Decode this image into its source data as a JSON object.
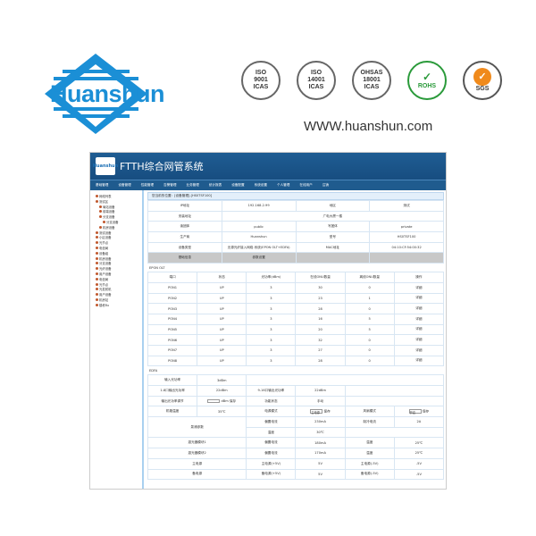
{
  "brand": {
    "name": "Huanshun",
    "url": "WWW.huanshun.com"
  },
  "certs": [
    {
      "line1": "ISO",
      "line2": "9001",
      "line3": "ICAS"
    },
    {
      "line1": "ISO",
      "line2": "14001",
      "line3": "ICAS"
    },
    {
      "line1": "OHSAS",
      "line2": "18001",
      "line3": "ICAS"
    },
    {
      "line1": "",
      "line2": "ROHS",
      "line3": ""
    },
    {
      "line1": "",
      "line2": "",
      "line3": "SGS"
    }
  ],
  "app": {
    "logo": "Huanshun",
    "title": "FTTH综合网管系统",
    "nav": [
      "基础管理",
      "设备管理",
      "性能管理",
      "告警管理",
      "业务管理",
      "统计报表",
      "设备配置",
      "系统设置",
      "个人管理",
      "在线用户",
      "注销"
    ],
    "sidebar": [
      "网络列表",
      "测试区",
      "局站设备",
      "前端设备",
      "分支设备",
      "分支设备",
      "机房设备",
      "测试设备",
      "小区设备",
      "光节点",
      "电信局",
      "设备组",
      "机房设备",
      "分支设备",
      "光纤设备",
      "用户设备",
      "电信局",
      "光节点",
      "光发射机",
      "用户设备",
      "机房站",
      "楼栋Rx"
    ],
    "breadcrumb": "您当前的位置：[设备管理]-[HS0TSF100]",
    "info": {
      "rows": [
        [
          "IP地址",
          "192.168.2.99",
          "地区",
          "测试"
        ],
        [
          "安装地址",
          "广电大厦一楼"
        ],
        [
          "读团体",
          "public",
          "写团体",
          "private"
        ],
        [
          "生产商",
          "Huanshun",
          "型号",
          "HS0TSF100"
        ],
        [
          "设备类型",
          "无源光纤接入网络-系统(EPON OLT+EDFA)",
          "MAC地址",
          "04:10:CF:54:00:32"
        ]
      ],
      "tabs": [
        "基础信息",
        "参数设置"
      ]
    },
    "epon": {
      "label": "EPON OLT",
      "headers": [
        "端口",
        "状态",
        "光功率(dBm)",
        "在线ONU数量",
        "离线ONU数量",
        "操作"
      ],
      "rows": [
        [
          "PON1",
          "UP",
          "3",
          "30",
          "0",
          "详细"
        ],
        [
          "PON2",
          "UP",
          "3",
          "23",
          "1",
          "详细"
        ],
        [
          "PON3",
          "UP",
          "3",
          "28",
          "0",
          "详细"
        ],
        [
          "PON4",
          "UP",
          "3",
          "16",
          "5",
          "详细"
        ],
        [
          "PON5",
          "UP",
          "3",
          "20",
          "5",
          "详细"
        ],
        [
          "PON6",
          "UP",
          "3",
          "32",
          "0",
          "详细"
        ],
        [
          "PON7",
          "UP",
          "3",
          "27",
          "0",
          "详细"
        ],
        [
          "PON8",
          "UP",
          "3",
          "28",
          "0",
          "详细"
        ]
      ]
    },
    "edfa": {
      "label": "EDFA",
      "input_power_label": "输入光功率",
      "input_power": "3dBm",
      "out18_label": "1-8口输出光功率",
      "out18": "22dBm",
      "out916_label": "9-16口输出光功率",
      "out916": "22dBm",
      "adjust_label": "输出光功率调节",
      "adjust_value": "",
      "adjust_unit": "dBm",
      "save": "保存",
      "mode_label": "功能状态",
      "mode": "手动",
      "temp_label": "机箱温度",
      "temp": "35℃",
      "power_mode_label": "电源模式",
      "power_mode": "主电源",
      "cool_label": "风扇模式",
      "cool": "开启",
      "pump_label": "泵浦参数",
      "pump_current_label": "偏置电流",
      "pump_current": "230mA",
      "cooling_current_label": "制冷电流",
      "cooling_current": "2A",
      "pump_temp_label": "温度",
      "pump_temp": "30℃",
      "laser1_label": "激光器模块1",
      "laser1_current": "180mA",
      "laser1_temp": "25℃",
      "laser2_label": "激光器模块2",
      "laser2_current": "170mA",
      "laser2_temp": "25℃",
      "main_psu_label": "主电源",
      "main_p5_label": "主电源(+5V)",
      "main_p5": "5V",
      "main_n5_label": "主电源(-5V)",
      "main_n5": "-5V",
      "backup_psu_label": "备电源",
      "backup_p5_label": "备电源(+5V)",
      "backup_p5": "5V",
      "backup_n5_label": "备电源(-5V)",
      "backup_n5": "-5V"
    }
  },
  "colors": {
    "brand_blue": "#1b8fd6",
    "header": "#1f5d93"
  }
}
